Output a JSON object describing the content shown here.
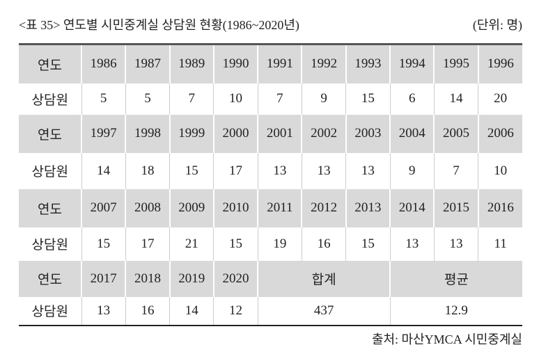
{
  "title": "<표 35> 연도별 시민중계실 상담원 현황(1986~2020년)",
  "unit": "(단위: 명)",
  "table": {
    "rows": [
      [
        "연도",
        1986,
        1987,
        1989,
        1990,
        1991,
        1992,
        1993,
        1994,
        1995,
        1996
      ],
      [
        "상담원",
        5,
        5,
        7,
        10,
        7,
        9,
        15,
        6,
        14,
        20
      ],
      [
        "연도",
        1997,
        1998,
        1999,
        2000,
        2001,
        2002,
        2003,
        2004,
        2005,
        2006
      ],
      [
        "상담원",
        14,
        18,
        15,
        17,
        13,
        13,
        13,
        9,
        7,
        10
      ],
      [
        "연도",
        2007,
        2008,
        2009,
        2010,
        2011,
        2012,
        2013,
        2014,
        2015,
        2016
      ],
      [
        "상담원",
        15,
        17,
        21,
        15,
        19,
        16,
        15,
        13,
        13,
        11
      ],
      [
        "연도",
        2017,
        2018,
        2019,
        2020,
        "합계",
        "평균"
      ],
      [
        "상담원",
        13,
        16,
        14,
        12,
        437,
        12.9
      ]
    ]
  },
  "source": "출처: 마산YMCA 시민중계실"
}
